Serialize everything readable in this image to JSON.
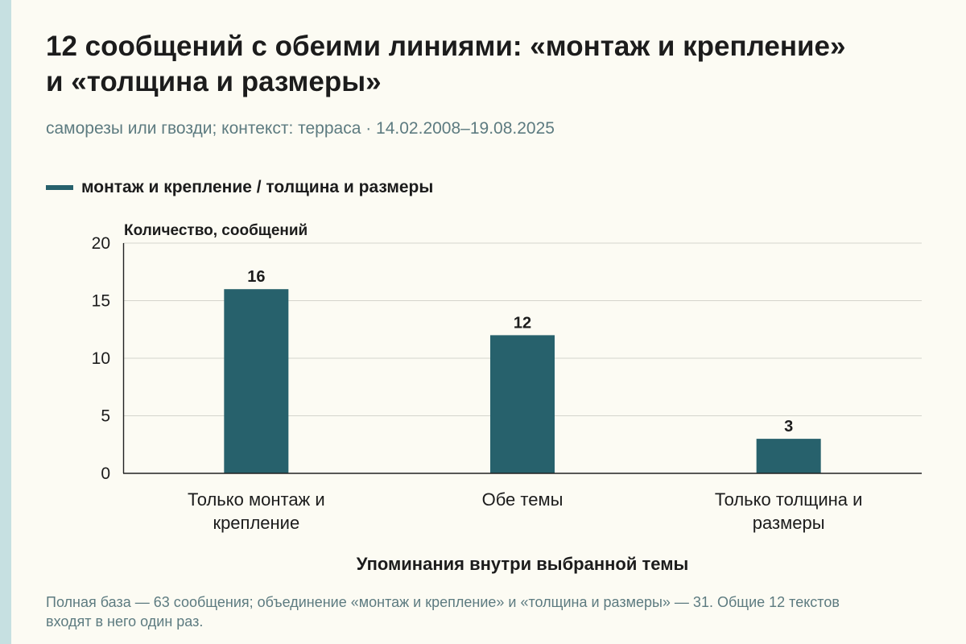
{
  "title": "12 сообщений с обеими линиями: «монтаж и крепление» и «толщина и размеры»",
  "subtitle": "саморезы или гвозди; контекст: терраса · 14.02.2008–19.08.2025",
  "footnote": "Полная база — 63 сообщения; объединение «монтаж и крепление» и «толщина и размеры» — 31. Общие 12 текстов входят в него один раз.",
  "colors": {
    "bar": "#27616c",
    "background": "#fcfbf3",
    "accent_stripe": "#c6e0e1",
    "subtle_text": "#5d7b80"
  },
  "chart_data": {
    "type": "bar",
    "categories": [
      [
        "Только монтаж и",
        "крепление"
      ],
      [
        "Обе темы"
      ],
      [
        "Только толщина и",
        "размеры"
      ]
    ],
    "series": [
      {
        "name": "монтаж и крепление / толщина и размеры",
        "values": [
          16,
          12,
          3
        ]
      }
    ],
    "ylabel": "Количество, сообщений",
    "xlabel": "Упоминания внутри выбранной темы",
    "ylim": [
      0,
      20
    ],
    "yticks": [
      0,
      5,
      10,
      15,
      20
    ],
    "grid": true,
    "legend_position": "top-left",
    "data_labels": true
  }
}
